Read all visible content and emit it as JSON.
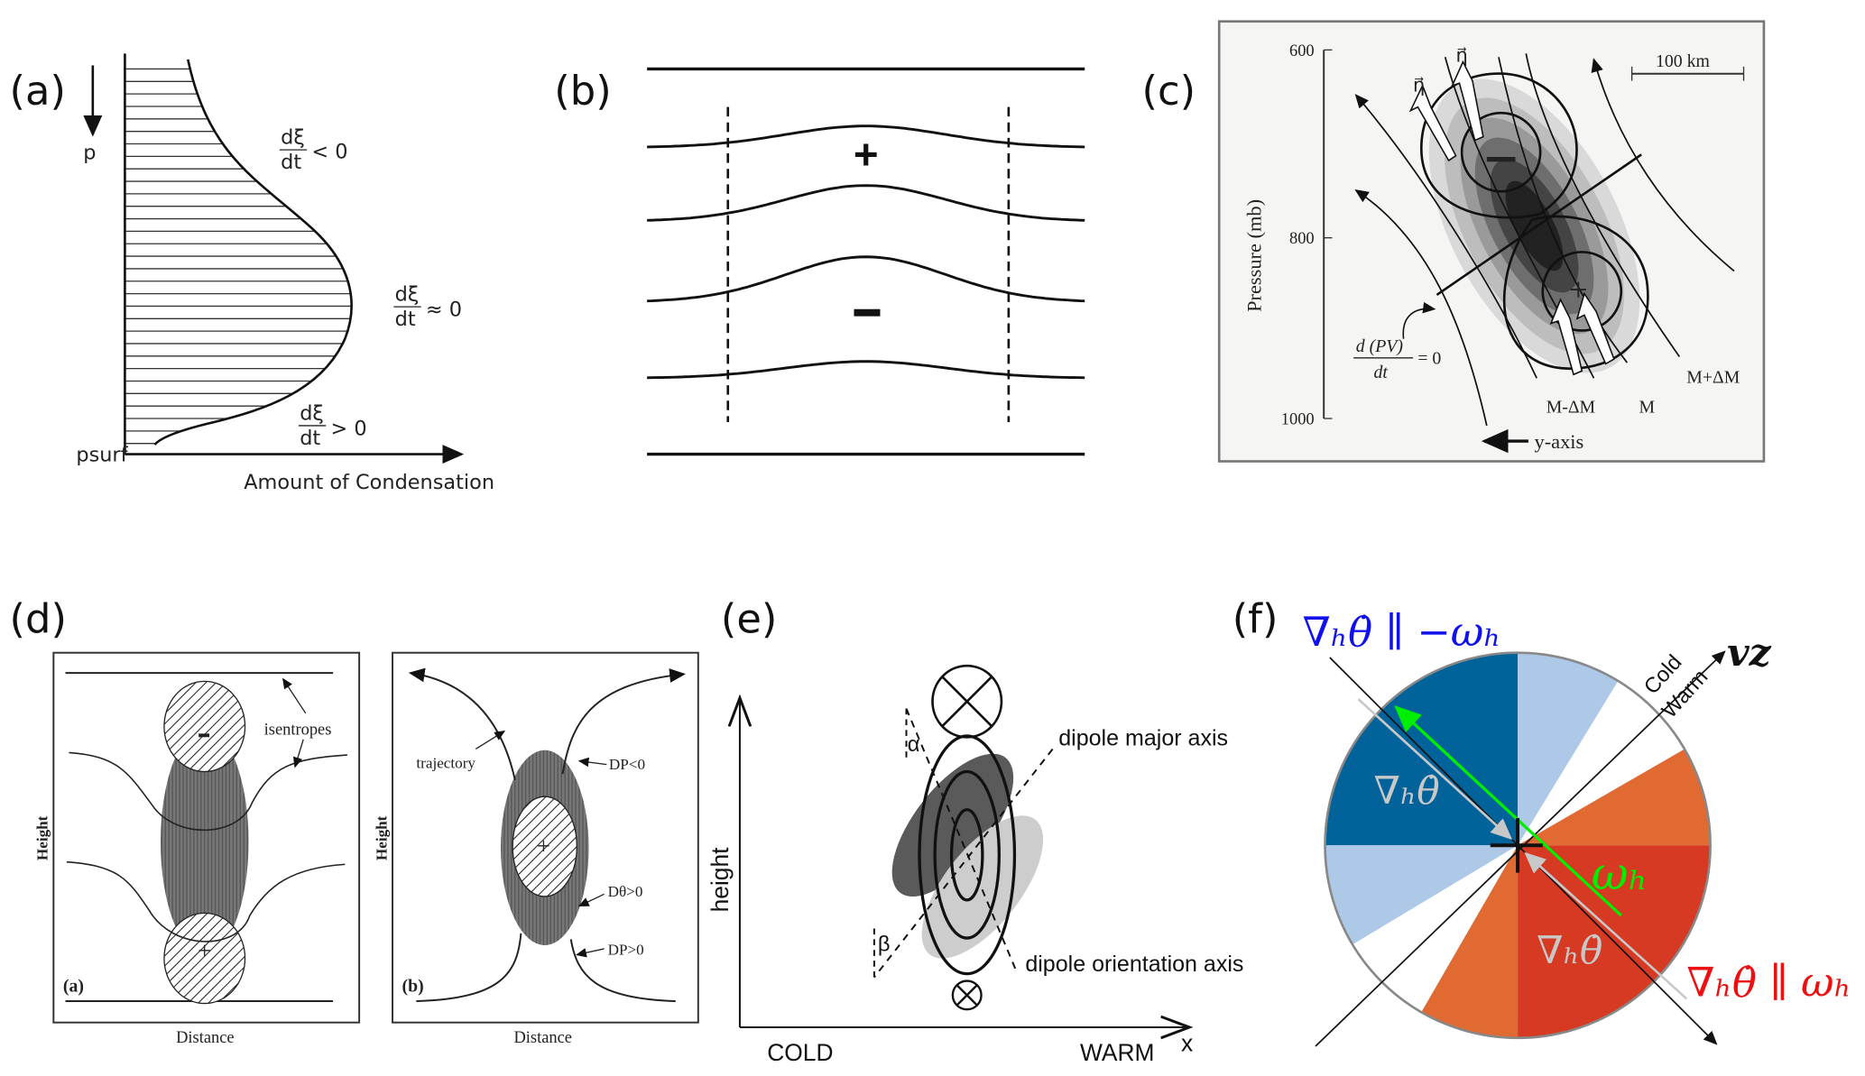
{
  "panel_labels": {
    "a": "(a)",
    "b": "(b)",
    "c": "(c)",
    "d": "(d)",
    "e": "(e)",
    "f": "(f)"
  },
  "panel_a": {
    "p_label": "p",
    "psurf_label": "psurf",
    "x_axis_label": "Amount of Condensation",
    "frac_num": "dξ",
    "frac_den": "dt",
    "rel_top": "< 0",
    "rel_mid": "≈ 0",
    "rel_bot": "> 0"
  },
  "panel_b": {
    "plus": "+",
    "minus": "−"
  },
  "panel_c": {
    "y_axis_label": "Pressure (mb)",
    "ticks": [
      "600",
      "800",
      "1000"
    ],
    "scale_bar": "100 km",
    "eta": "η⃗",
    "minus": "−",
    "plus": "+",
    "pv_num": "d (PV)",
    "pv_den": "dt",
    "pv_rhs": "= 0",
    "m_minus": "M-ΔM",
    "m": "M",
    "m_plus": "M+ΔM",
    "y_axis_arrow": "y-axis"
  },
  "panel_d": {
    "left": {
      "tag": "(a)",
      "annotation": "isentropes",
      "xlabel": "Distance",
      "ylabel": "Height",
      "minus": "−",
      "plus": "+"
    },
    "right": {
      "tag": "(b)",
      "trajectory": "trajectory",
      "dp_neg": "DP<0",
      "dtheta": "Dθ>0",
      "dp_pos": "DP>0",
      "xlabel": "Distance",
      "ylabel": "Height",
      "plus": "+"
    }
  },
  "panel_e": {
    "ylabel": "height",
    "cold": "COLD",
    "warm": "WARM",
    "x": "x",
    "alpha": "α",
    "beta": "β",
    "major_axis": "dipole major axis",
    "orientation_axis": "dipole orientation axis"
  },
  "panel_f": {
    "top_label": "∇ₕθ̇ ∥ −ωₕ",
    "bottom_label": "∇ₕθ̇ ∥ ωₕ",
    "grad_label": "∇ₕθ̇",
    "omega": "ωₕ",
    "vz": "vz",
    "cold": "Cold",
    "warm": "Warm",
    "colors": {
      "dark_blue": "#02639b",
      "light_blue": "#aec8e8",
      "orange": "#e06a32",
      "red": "#d63a22",
      "green": "#00ee00",
      "blue_text": "#1010ee",
      "red_text": "#ee1010"
    }
  }
}
